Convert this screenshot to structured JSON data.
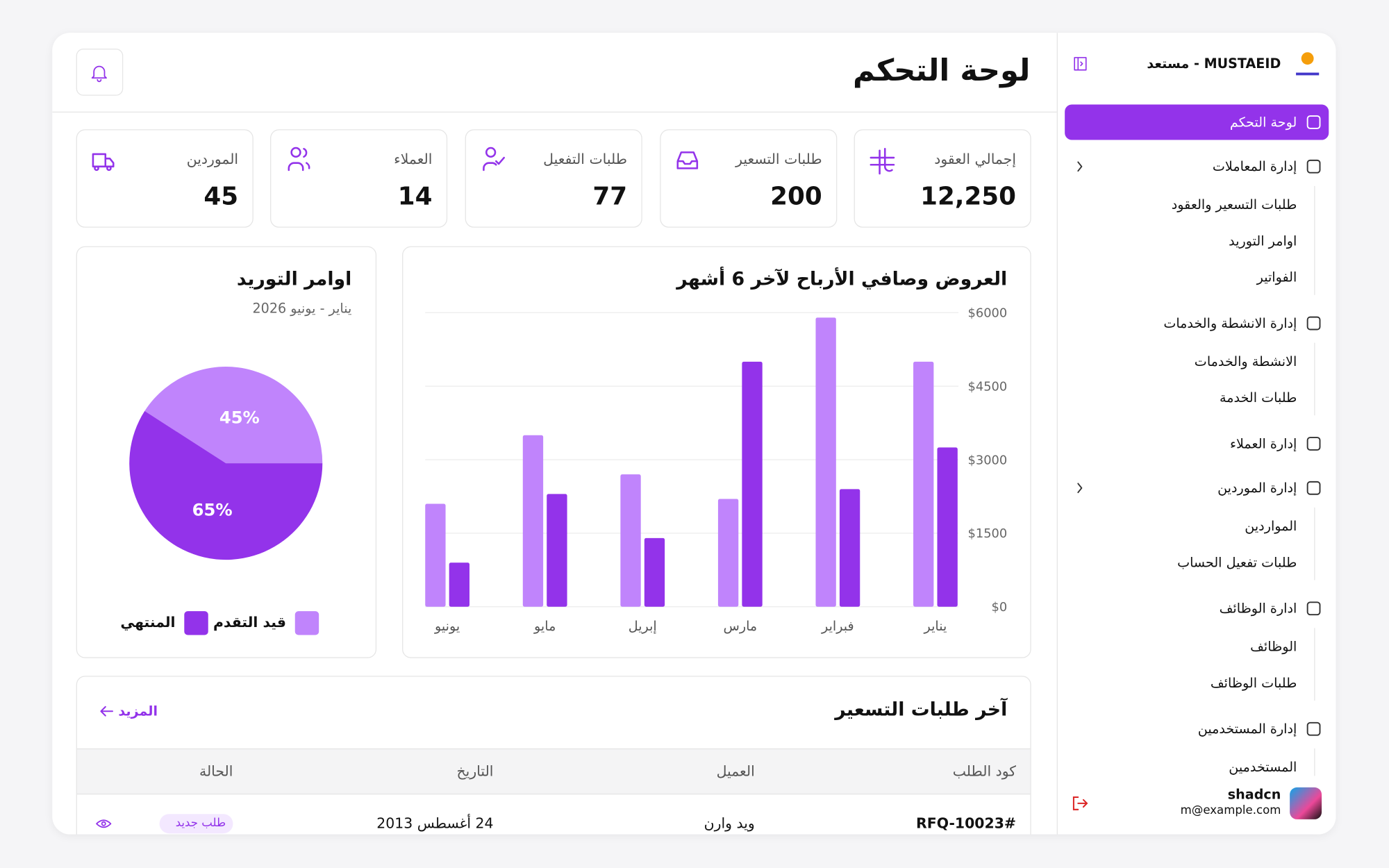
{
  "sidebar": {
    "brand": "MUSTAEID - مستعد",
    "nav": [
      {
        "label": "لوحة التحكم"
      },
      {
        "label": "إدارة المعاملات",
        "children": [
          "طلبات التسعير والعقود",
          "اوامر التوريد",
          "الفواتير"
        ]
      },
      {
        "label": "إدارة الانشطة والخدمات",
        "children": [
          "الانشطة والخدمات",
          "طلبات الخدمة"
        ]
      },
      {
        "label": "إدارة العملاء"
      },
      {
        "label": "إدارة الموردين",
        "children": [
          "المواردين",
          "طلبات تفعيل الحساب"
        ]
      },
      {
        "label": "ادارة الوظائف",
        "children": [
          "الوظائف",
          "طلبات الوظائف"
        ]
      },
      {
        "label": "إدارة المستخدمين",
        "children": [
          "المستخدمين"
        ]
      }
    ],
    "user": {
      "name": "shadcn",
      "email": "m@example.com"
    }
  },
  "header": {
    "title": "لوحة التحكم"
  },
  "stats": [
    {
      "label": "إجمالي العقود",
      "value": "12,250"
    },
    {
      "label": "طلبات التسعير",
      "value": 200
    },
    {
      "label": "طلبات التفعيل",
      "value": 77
    },
    {
      "label": "العملاء",
      "value": 14
    },
    {
      "label": "الموردين",
      "value": 45
    }
  ],
  "chart_data": [
    {
      "type": "bar",
      "title": "العروض وصافي الأرباح لآخر 6 أشهر",
      "categories": [
        "يناير",
        "فبراير",
        "مارس",
        "إبريل",
        "مايو",
        "يونيو"
      ],
      "series": [
        {
          "color": "#c084fc",
          "values": [
            5000,
            5900,
            2200,
            2700,
            3500,
            2100
          ]
        },
        {
          "color": "#9333ea",
          "values": [
            3250,
            2400,
            5000,
            1400,
            2300,
            900
          ]
        }
      ],
      "ylim": [
        0,
        6000
      ],
      "yticks": [
        {
          "value": 0,
          "label": "$0"
        },
        {
          "value": 1500,
          "label": "$1500"
        },
        {
          "value": 3000,
          "label": "$3000"
        },
        {
          "value": 4500,
          "label": "$4500"
        },
        {
          "value": 6000,
          "label": "$6000"
        }
      ],
      "grid": true
    },
    {
      "type": "pie",
      "title": "اوامر التوريد",
      "subtitle": "يناير - يونيو 2026",
      "categories": [
        "قيد التقدم",
        "المنتهي"
      ],
      "values": [
        45,
        65
      ],
      "value_labels": [
        "45%",
        "65%"
      ],
      "colors": [
        "#c084fc",
        "#9333ea"
      ]
    }
  ],
  "table": {
    "title": "آخر طلبات التسعير",
    "more": "المزيد",
    "columns": [
      "كود الطلب",
      "العميل",
      "التاريخ",
      "الحالة"
    ],
    "rows": [
      [
        "#RFQ-10023",
        "ويد وارن",
        "24 أغسطس 2013",
        "طلب جديد"
      ]
    ]
  }
}
